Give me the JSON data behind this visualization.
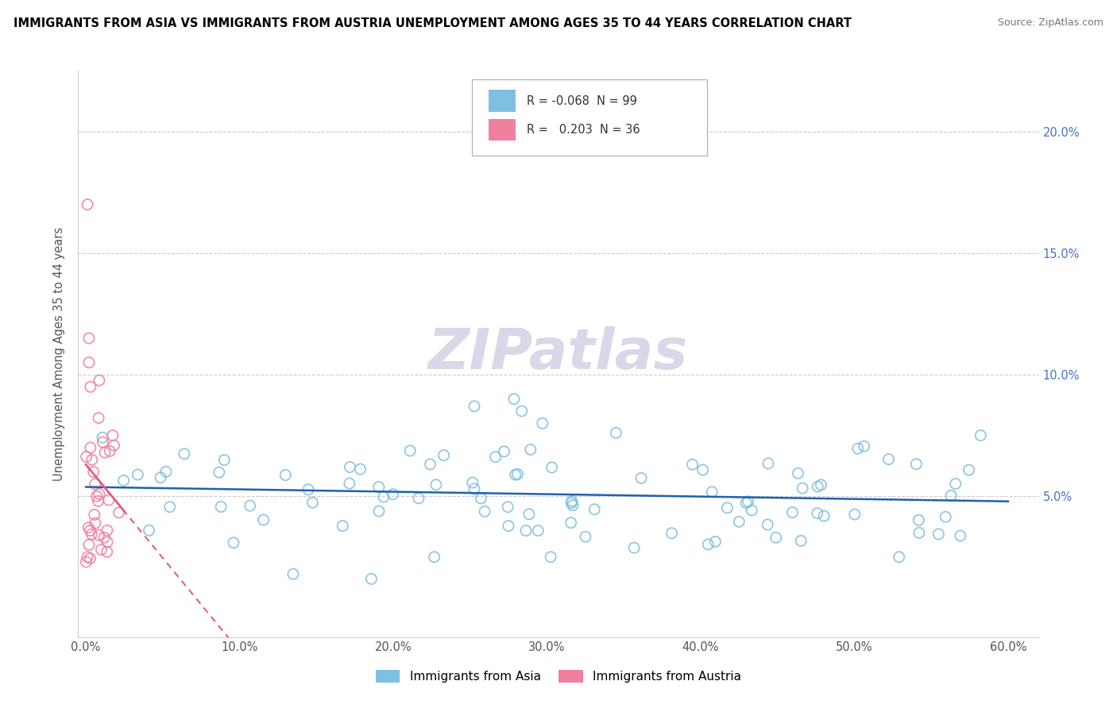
{
  "title": "IMMIGRANTS FROM ASIA VS IMMIGRANTS FROM AUSTRIA UNEMPLOYMENT AMONG AGES 35 TO 44 YEARS CORRELATION CHART",
  "source": "Source: ZipAtlas.com",
  "ylabel": "Unemployment Among Ages 35 to 44 years",
  "xlim": [
    -0.005,
    0.62
  ],
  "ylim": [
    -0.008,
    0.225
  ],
  "xticks": [
    0.0,
    0.1,
    0.2,
    0.3,
    0.4,
    0.5,
    0.6
  ],
  "xtick_labels": [
    "0.0%",
    "10.0%",
    "20.0%",
    "30.0%",
    "40.0%",
    "50.0%",
    "60.0%"
  ],
  "yticks": [
    0.05,
    0.1,
    0.15,
    0.2
  ],
  "ytick_labels": [
    "5.0%",
    "10.0%",
    "15.0%",
    "20.0%"
  ],
  "asia_color": "#7fbfdf",
  "austria_color": "#f080a0",
  "trend_asia_color": "#2060b0",
  "trend_austria_color": "#e06080",
  "watermark_color": "#d8d8e8",
  "legend_asia_r": "-0.068",
  "legend_asia_n": "99",
  "legend_austria_r": "0.203",
  "legend_austria_n": "36",
  "legend_r_color_asia": "#0070c0",
  "legend_r_color_austria": "#e06080",
  "legend_n_color": "#0070c0"
}
